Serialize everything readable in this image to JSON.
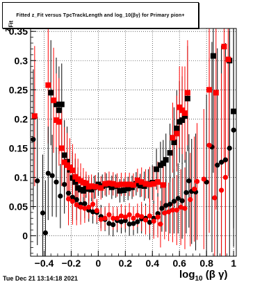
{
  "title": "Fitted z_Fit versus TpcTrackLength and log_10(βγ) for Primary pion+",
  "footer_timestamp": "Tue Dec 21 13:14:18 2021",
  "chart_data": {
    "type": "scatter",
    "title": "Fitted z_Fit versus TpcTrackLength and log_10(βγ) for Primary pion+",
    "xlabel": "log_10(βγ)",
    "ylabel": "z_Fit",
    "xlim": [
      -0.5,
      1.02
    ],
    "ylim": [
      -0.035,
      0.355
    ],
    "xticks": [
      -0.4,
      -0.2,
      0,
      0.2,
      0.4,
      0.6,
      0.8,
      1
    ],
    "xtick_labels": [
      "−0.4",
      "−0.2",
      "0",
      "0.2",
      "0.4",
      "0.6",
      "0.8",
      "1"
    ],
    "yticks": [
      0,
      0.05,
      0.1,
      0.15,
      0.2,
      0.25,
      0.3,
      0.35
    ],
    "ytick_labels": [
      "0",
      "0.05",
      "0.1",
      "0.15",
      "0.2",
      "0.25",
      "0.3",
      "0.35"
    ],
    "grid": true,
    "series": [
      {
        "marker": "square",
        "color": "#000000",
        "points": [
          {
            "x": -0.35,
            "y": 0.245,
            "err": 0.09
          },
          {
            "x": -0.31,
            "y": 0.225,
            "err": 0.08
          },
          {
            "x": -0.29,
            "y": 0.215,
            "err": 0.075
          },
          {
            "x": -0.27,
            "y": 0.225,
            "err": 0.07
          },
          {
            "x": -0.25,
            "y": 0.138,
            "err": 0.06
          },
          {
            "x": -0.23,
            "y": 0.127,
            "err": 0.06
          },
          {
            "x": -0.21,
            "y": 0.113,
            "err": 0.05
          },
          {
            "x": -0.19,
            "y": 0.099,
            "err": 0.045
          },
          {
            "x": -0.17,
            "y": 0.092,
            "err": 0.04
          },
          {
            "x": -0.15,
            "y": 0.082,
            "err": 0.035
          },
          {
            "x": -0.13,
            "y": 0.079,
            "err": 0.03
          },
          {
            "x": -0.11,
            "y": 0.077,
            "err": 0.025
          },
          {
            "x": -0.09,
            "y": 0.085,
            "err": 0.02
          },
          {
            "x": -0.07,
            "y": 0.08,
            "err": 0.02
          },
          {
            "x": -0.05,
            "y": 0.079,
            "err": 0.02
          },
          {
            "x": -0.03,
            "y": 0.083,
            "err": 0.02
          },
          {
            "x": 0.0,
            "y": 0.088,
            "err": 0.02
          },
          {
            "x": 0.03,
            "y": 0.085,
            "err": 0.02
          },
          {
            "x": 0.06,
            "y": 0.087,
            "err": 0.02
          },
          {
            "x": 0.1,
            "y": 0.083,
            "err": 0.02
          },
          {
            "x": 0.13,
            "y": 0.085,
            "err": 0.02
          },
          {
            "x": 0.16,
            "y": 0.077,
            "err": 0.02
          },
          {
            "x": 0.19,
            "y": 0.078,
            "err": 0.02
          },
          {
            "x": 0.22,
            "y": 0.081,
            "err": 0.02
          },
          {
            "x": 0.25,
            "y": 0.083,
            "err": 0.02
          },
          {
            "x": 0.28,
            "y": 0.089,
            "err": 0.02
          },
          {
            "x": 0.31,
            "y": 0.086,
            "err": 0.02
          },
          {
            "x": 0.34,
            "y": 0.085,
            "err": 0.025
          },
          {
            "x": 0.37,
            "y": 0.089,
            "err": 0.025
          },
          {
            "x": 0.4,
            "y": 0.091,
            "err": 0.03
          },
          {
            "x": 0.43,
            "y": 0.114,
            "err": 0.035
          },
          {
            "x": 0.46,
            "y": 0.121,
            "err": 0.04
          },
          {
            "x": 0.48,
            "y": 0.124,
            "err": 0.04
          },
          {
            "x": 0.5,
            "y": 0.13,
            "err": 0.045
          },
          {
            "x": 0.53,
            "y": 0.142,
            "err": 0.05
          },
          {
            "x": 0.56,
            "y": 0.16,
            "err": 0.06
          },
          {
            "x": 0.58,
            "y": 0.184,
            "err": 0.065
          },
          {
            "x": 0.6,
            "y": 0.195,
            "err": 0.07
          },
          {
            "x": 0.62,
            "y": 0.198,
            "err": 0.075
          },
          {
            "x": 0.64,
            "y": 0.205,
            "err": 0.08
          },
          {
            "x": 0.66,
            "y": 0.235,
            "err": 0.09
          },
          {
            "x": 0.85,
            "y": 0.308,
            "err": 0.2
          },
          {
            "x": 0.97,
            "y": 0.3,
            "err": 0.2
          },
          {
            "x": 1.0,
            "y": 0.213,
            "err": 0.2
          }
        ]
      },
      {
        "marker": "square",
        "color": "#ff0000",
        "points": [
          {
            "x": -0.47,
            "y": 0.205,
            "err": 0.12
          },
          {
            "x": -0.37,
            "y": 0.258,
            "err": 0.1
          },
          {
            "x": -0.33,
            "y": 0.232,
            "err": 0.09
          },
          {
            "x": -0.31,
            "y": 0.198,
            "err": 0.08
          },
          {
            "x": -0.29,
            "y": 0.195,
            "err": 0.075
          },
          {
            "x": -0.27,
            "y": 0.15,
            "err": 0.065
          },
          {
            "x": -0.25,
            "y": 0.126,
            "err": 0.06
          },
          {
            "x": -0.23,
            "y": 0.121,
            "err": 0.055
          },
          {
            "x": -0.21,
            "y": 0.117,
            "err": 0.05
          },
          {
            "x": -0.19,
            "y": 0.112,
            "err": 0.045
          },
          {
            "x": -0.17,
            "y": 0.101,
            "err": 0.04
          },
          {
            "x": -0.15,
            "y": 0.097,
            "err": 0.035
          },
          {
            "x": -0.13,
            "y": 0.094,
            "err": 0.03
          },
          {
            "x": -0.11,
            "y": 0.091,
            "err": 0.025
          },
          {
            "x": -0.09,
            "y": 0.09,
            "err": 0.02
          },
          {
            "x": -0.07,
            "y": 0.084,
            "err": 0.02
          },
          {
            "x": -0.05,
            "y": 0.085,
            "err": 0.02
          },
          {
            "x": -0.02,
            "y": 0.084,
            "err": 0.02
          },
          {
            "x": 0.02,
            "y": 0.082,
            "err": 0.02
          },
          {
            "x": 0.05,
            "y": 0.089,
            "err": 0.02
          },
          {
            "x": 0.08,
            "y": 0.09,
            "err": 0.02
          },
          {
            "x": 0.11,
            "y": 0.089,
            "err": 0.02
          },
          {
            "x": 0.14,
            "y": 0.087,
            "err": 0.02
          },
          {
            "x": 0.17,
            "y": 0.088,
            "err": 0.02
          },
          {
            "x": 0.2,
            "y": 0.088,
            "err": 0.02
          },
          {
            "x": 0.23,
            "y": 0.088,
            "err": 0.02
          },
          {
            "x": 0.26,
            "y": 0.087,
            "err": 0.02
          },
          {
            "x": 0.29,
            "y": 0.095,
            "err": 0.02
          },
          {
            "x": 0.32,
            "y": 0.092,
            "err": 0.025
          },
          {
            "x": 0.35,
            "y": 0.089,
            "err": 0.025
          },
          {
            "x": 0.38,
            "y": 0.088,
            "err": 0.03
          },
          {
            "x": 0.41,
            "y": 0.089,
            "err": 0.03
          },
          {
            "x": 0.44,
            "y": 0.092,
            "err": 0.035
          },
          {
            "x": 0.48,
            "y": 0.087,
            "err": 0.04
          },
          {
            "x": 0.55,
            "y": 0.168,
            "err": 0.06
          },
          {
            "x": 0.58,
            "y": 0.175,
            "err": 0.065
          },
          {
            "x": 0.6,
            "y": 0.22,
            "err": 0.07
          },
          {
            "x": 0.62,
            "y": 0.215,
            "err": 0.075
          },
          {
            "x": 0.64,
            "y": 0.21,
            "err": 0.08
          },
          {
            "x": 0.66,
            "y": 0.245,
            "err": 0.09
          },
          {
            "x": 0.82,
            "y": 0.25,
            "err": 0.2
          },
          {
            "x": 0.87,
            "y": 0.245,
            "err": 0.2
          },
          {
            "x": 0.93,
            "y": 0.324,
            "err": 0.2
          },
          {
            "x": 0.96,
            "y": 0.302,
            "err": 0.2
          }
        ]
      },
      {
        "marker": "circle",
        "color": "#000000",
        "points": [
          {
            "x": -0.48,
            "y": 0.165,
            "err": 0.12
          },
          {
            "x": -0.45,
            "y": 0.094,
            "err": 0.11
          },
          {
            "x": -0.41,
            "y": 0.039,
            "err": 0.1
          },
          {
            "x": -0.39,
            "y": 0.005,
            "err": 0.09
          },
          {
            "x": -0.37,
            "y": 0.107,
            "err": 0.08
          },
          {
            "x": -0.34,
            "y": 0.103,
            "err": 0.07
          },
          {
            "x": -0.31,
            "y": 0.092,
            "err": 0.06
          },
          {
            "x": -0.28,
            "y": 0.068,
            "err": 0.055
          },
          {
            "x": -0.25,
            "y": 0.088,
            "err": 0.05
          },
          {
            "x": -0.22,
            "y": 0.073,
            "err": 0.045
          },
          {
            "x": -0.19,
            "y": 0.066,
            "err": 0.04
          },
          {
            "x": -0.16,
            "y": 0.062,
            "err": 0.035
          },
          {
            "x": -0.13,
            "y": 0.054,
            "err": 0.03
          },
          {
            "x": -0.1,
            "y": 0.055,
            "err": 0.025
          },
          {
            "x": -0.07,
            "y": 0.044,
            "err": 0.02
          },
          {
            "x": -0.04,
            "y": 0.041,
            "err": 0.02
          },
          {
            "x": -0.01,
            "y": 0.04,
            "err": 0.02
          },
          {
            "x": 0.02,
            "y": 0.033,
            "err": 0.02
          },
          {
            "x": 0.05,
            "y": 0.028,
            "err": 0.02
          },
          {
            "x": 0.08,
            "y": 0.021,
            "err": 0.02
          },
          {
            "x": 0.11,
            "y": 0.019,
            "err": 0.02
          },
          {
            "x": 0.14,
            "y": 0.026,
            "err": 0.02
          },
          {
            "x": 0.17,
            "y": 0.024,
            "err": 0.02
          },
          {
            "x": 0.2,
            "y": 0.026,
            "err": 0.02
          },
          {
            "x": 0.23,
            "y": 0.02,
            "err": 0.02
          },
          {
            "x": 0.26,
            "y": 0.021,
            "err": 0.02
          },
          {
            "x": 0.29,
            "y": 0.024,
            "err": 0.02
          },
          {
            "x": 0.32,
            "y": 0.029,
            "err": 0.025
          },
          {
            "x": 0.35,
            "y": 0.03,
            "err": 0.025
          },
          {
            "x": 0.38,
            "y": 0.023,
            "err": 0.03
          },
          {
            "x": 0.41,
            "y": 0.03,
            "err": 0.03
          },
          {
            "x": 0.44,
            "y": 0.038,
            "err": 0.035
          },
          {
            "x": 0.47,
            "y": 0.047,
            "err": 0.04
          },
          {
            "x": 0.5,
            "y": 0.052,
            "err": 0.045
          },
          {
            "x": 0.53,
            "y": 0.054,
            "err": 0.05
          },
          {
            "x": 0.56,
            "y": 0.059,
            "err": 0.055
          },
          {
            "x": 0.59,
            "y": 0.064,
            "err": 0.06
          },
          {
            "x": 0.62,
            "y": 0.06,
            "err": 0.065
          },
          {
            "x": 0.65,
            "y": 0.074,
            "err": 0.07
          },
          {
            "x": 0.67,
            "y": 0.094,
            "err": 0.08
          },
          {
            "x": 0.69,
            "y": 0.076,
            "err": 0.09
          },
          {
            "x": 0.72,
            "y": 0.075,
            "err": 0.1
          },
          {
            "x": 0.8,
            "y": 0.092,
            "err": 0.15
          },
          {
            "x": 0.84,
            "y": 0.152,
            "err": 0.18
          },
          {
            "x": 0.88,
            "y": 0.121,
            "err": 0.2
          },
          {
            "x": 0.91,
            "y": 0.126,
            "err": 0.2
          },
          {
            "x": 0.94,
            "y": 0.13,
            "err": 0.2
          },
          {
            "x": 0.97,
            "y": 0.15,
            "err": 0.2
          },
          {
            "x": 1.0,
            "y": 0.181,
            "err": 0.2
          }
        ]
      },
      {
        "marker": "circle",
        "color": "#ff0000",
        "points": [
          {
            "x": -0.22,
            "y": 0.063,
            "err": 0.045
          },
          {
            "x": -0.19,
            "y": 0.059,
            "err": 0.04
          },
          {
            "x": -0.16,
            "y": 0.053,
            "err": 0.035
          },
          {
            "x": -0.13,
            "y": 0.049,
            "err": 0.03
          },
          {
            "x": -0.1,
            "y": 0.047,
            "err": 0.025
          },
          {
            "x": -0.07,
            "y": 0.049,
            "err": 0.02
          },
          {
            "x": -0.04,
            "y": 0.054,
            "err": 0.02
          },
          {
            "x": -0.01,
            "y": 0.043,
            "err": 0.02
          },
          {
            "x": 0.02,
            "y": 0.028,
            "err": 0.02
          },
          {
            "x": 0.05,
            "y": 0.03,
            "err": 0.02
          },
          {
            "x": 0.08,
            "y": 0.036,
            "err": 0.02
          },
          {
            "x": 0.11,
            "y": 0.03,
            "err": 0.02
          },
          {
            "x": 0.14,
            "y": 0.03,
            "err": 0.02
          },
          {
            "x": 0.17,
            "y": 0.034,
            "err": 0.02
          },
          {
            "x": 0.2,
            "y": 0.032,
            "err": 0.02
          },
          {
            "x": 0.23,
            "y": 0.036,
            "err": 0.02
          },
          {
            "x": 0.26,
            "y": 0.03,
            "err": 0.02
          },
          {
            "x": 0.29,
            "y": 0.035,
            "err": 0.02
          },
          {
            "x": 0.32,
            "y": 0.033,
            "err": 0.025
          },
          {
            "x": 0.35,
            "y": 0.027,
            "err": 0.025
          },
          {
            "x": 0.38,
            "y": 0.034,
            "err": 0.03
          },
          {
            "x": 0.41,
            "y": 0.025,
            "err": 0.03
          },
          {
            "x": 0.44,
            "y": 0.032,
            "err": 0.035
          },
          {
            "x": 0.46,
            "y": 0.02,
            "err": 0.04
          },
          {
            "x": 0.49,
            "y": 0.039,
            "err": 0.045
          },
          {
            "x": 0.52,
            "y": 0.041,
            "err": 0.05
          },
          {
            "x": 0.55,
            "y": 0.044,
            "err": 0.055
          },
          {
            "x": 0.58,
            "y": 0.044,
            "err": 0.06
          },
          {
            "x": 0.61,
            "y": 0.049,
            "err": 0.065
          },
          {
            "x": 0.64,
            "y": 0.047,
            "err": 0.07
          },
          {
            "x": 0.68,
            "y": 0.062,
            "err": 0.08
          },
          {
            "x": 0.71,
            "y": 0.08,
            "err": 0.09
          },
          {
            "x": 0.73,
            "y": 0.093,
            "err": 0.1
          },
          {
            "x": 0.78,
            "y": 0.097,
            "err": 0.12
          },
          {
            "x": 0.82,
            "y": 0.155,
            "err": 0.15
          },
          {
            "x": 0.86,
            "y": 0.065,
            "err": 0.18
          },
          {
            "x": 0.91,
            "y": 0.078,
            "err": 0.2
          },
          {
            "x": 0.94,
            "y": 0.1,
            "err": 0.2
          }
        ]
      }
    ]
  }
}
